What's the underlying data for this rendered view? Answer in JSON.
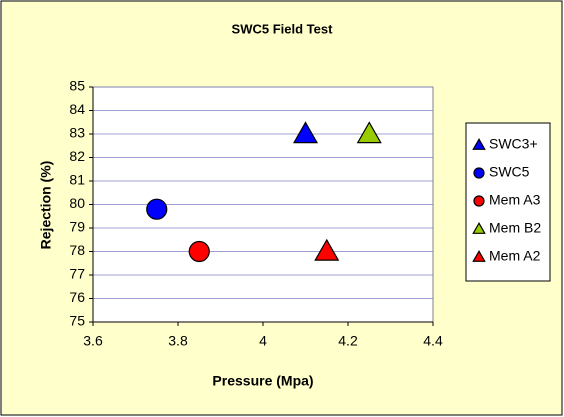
{
  "chart_data": {
    "type": "scatter",
    "title": "SWC5 Field Test",
    "x_label": "Pressure (Mpa)",
    "y_label": "Rejection (%)",
    "xlim": [
      3.6,
      4.4
    ],
    "xticks": [
      3.6,
      3.8,
      4,
      4.2,
      4.4
    ],
    "ylim": [
      75,
      85
    ],
    "yticks": [
      75,
      76,
      77,
      78,
      79,
      80,
      81,
      82,
      83,
      84,
      85
    ],
    "grid": true,
    "legend": "right",
    "series": [
      {
        "name": "SWC3+",
        "color": "#0000ff",
        "marker": "triangle",
        "x": [
          4.1
        ],
        "values": [
          83
        ]
      },
      {
        "name": "SWC5",
        "color": "#0000ff",
        "marker": "circle",
        "x": [
          3.75
        ],
        "values": [
          79.8
        ]
      },
      {
        "name": "Mem A3",
        "color": "#ff0000",
        "marker": "circle",
        "x": [
          3.85
        ],
        "values": [
          78
        ]
      },
      {
        "name": "Mem B2",
        "color": "#99cc00",
        "marker": "triangle",
        "x": [
          4.25
        ],
        "values": [
          83
        ]
      },
      {
        "name": "Mem A2",
        "color": "#ff0000",
        "marker": "triangle",
        "x": [
          4.15
        ],
        "values": [
          78
        ]
      }
    ]
  }
}
